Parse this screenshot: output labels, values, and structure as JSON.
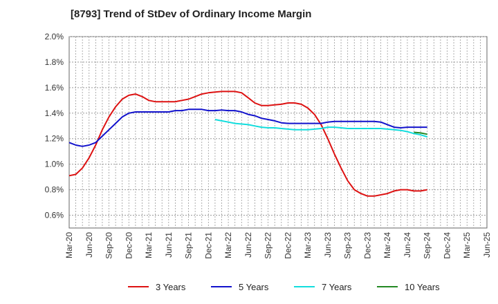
{
  "chart_data": {
    "type": "line",
    "title": "[8793]  Trend of StDev of Ordinary Income Margin",
    "xlabel": "",
    "ylabel": "",
    "ylim": [
      0.5,
      2.0
    ],
    "y_ticks": [
      "2.0%",
      "1.8%",
      "1.6%",
      "1.4%",
      "1.2%",
      "1.0%",
      "0.8%",
      "0.6%"
    ],
    "y_tick_values": [
      2.0,
      1.8,
      1.6,
      1.4,
      1.2,
      1.0,
      0.8,
      0.6
    ],
    "x_ticks": [
      "Mar-20",
      "Jun-20",
      "Sep-20",
      "Dec-20",
      "Mar-21",
      "Jun-21",
      "Sep-21",
      "Dec-21",
      "Mar-22",
      "Jun-22",
      "Sep-22",
      "Dec-22",
      "Mar-23",
      "Jun-23",
      "Sep-23",
      "Dec-23",
      "Mar-24",
      "Jun-24",
      "Sep-24",
      "Dec-24",
      "Mar-25",
      "Jun-25"
    ],
    "grid": true,
    "legend_position": "bottom",
    "series": [
      {
        "name": "3 Years",
        "color": "#dd1111",
        "start_index": 0,
        "values": [
          0.91,
          0.92,
          0.97,
          1.05,
          1.15,
          1.27,
          1.37,
          1.45,
          1.51,
          1.54,
          1.55,
          1.53,
          1.5,
          1.49,
          1.49,
          1.49,
          1.49,
          1.5,
          1.51,
          1.53,
          1.55,
          1.56,
          1.565,
          1.57,
          1.57,
          1.57,
          1.56,
          1.52,
          1.48,
          1.46,
          1.46,
          1.465,
          1.47,
          1.48,
          1.48,
          1.47,
          1.44,
          1.39,
          1.31,
          1.2,
          1.08,
          0.97,
          0.87,
          0.8,
          0.77,
          0.75,
          0.75,
          0.76,
          0.77,
          0.79,
          0.8,
          0.8,
          0.79,
          0.79,
          0.8
        ]
      },
      {
        "name": "5 Years",
        "color": "#1111cc",
        "start_index": 0,
        "values": [
          1.17,
          1.15,
          1.14,
          1.15,
          1.17,
          1.22,
          1.27,
          1.32,
          1.37,
          1.4,
          1.41,
          1.41,
          1.41,
          1.41,
          1.41,
          1.41,
          1.42,
          1.42,
          1.43,
          1.43,
          1.43,
          1.42,
          1.42,
          1.425,
          1.42,
          1.42,
          1.41,
          1.39,
          1.38,
          1.36,
          1.35,
          1.34,
          1.325,
          1.32,
          1.32,
          1.32,
          1.32,
          1.32,
          1.32,
          1.33,
          1.335,
          1.335,
          1.335,
          1.335,
          1.335,
          1.335,
          1.335,
          1.33,
          1.31,
          1.29,
          1.285,
          1.29,
          1.29,
          1.29,
          1.29
        ]
      },
      {
        "name": "7 Years",
        "color": "#11dddd",
        "start_index": 22,
        "values": [
          1.35,
          1.34,
          1.33,
          1.32,
          1.315,
          1.31,
          1.3,
          1.29,
          1.285,
          1.285,
          1.28,
          1.275,
          1.27,
          1.27,
          1.27,
          1.275,
          1.28,
          1.29,
          1.29,
          1.285,
          1.28,
          1.28,
          1.28,
          1.28,
          1.28,
          1.28,
          1.275,
          1.27,
          1.265,
          1.255,
          1.24,
          1.23,
          1.215
        ]
      },
      {
        "name": "10 Years",
        "color": "#228822",
        "start_index": 52,
        "values": [
          1.25,
          1.245,
          1.235
        ]
      }
    ]
  }
}
